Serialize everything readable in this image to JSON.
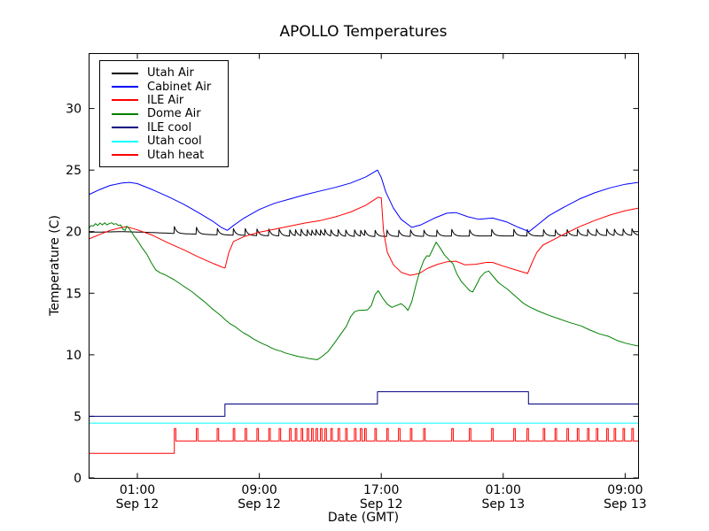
{
  "figure": {
    "title": "APOLLO Temperatures",
    "xlabel": "Date (GMT)",
    "ylabel": "Temperature (C)"
  },
  "chart_data": {
    "type": "line",
    "title": "APOLLO Temperatures",
    "xlabel": "Date (GMT)",
    "ylabel": "Temperature (C)",
    "x_unit": "hours relative to Sep 12 00:00 GMT",
    "xlim": [
      -2.2,
      33.85
    ],
    "ylim": [
      0,
      34.5
    ],
    "grid": false,
    "legend_position": "upper left",
    "xticks": [
      {
        "pos": 1,
        "time": "01:00",
        "date": "Sep 12"
      },
      {
        "pos": 9,
        "time": "09:00",
        "date": "Sep 12"
      },
      {
        "pos": 17,
        "time": "17:00",
        "date": "Sep 12"
      },
      {
        "pos": 25,
        "time": "01:00",
        "date": "Sep 13"
      },
      {
        "pos": 33,
        "time": "09:00",
        "date": "Sep 13"
      }
    ],
    "yticks": [
      0,
      5,
      10,
      15,
      20,
      25,
      30
    ],
    "series": [
      {
        "name": "Utah Air",
        "color": "#000000",
        "type": "sawtooth",
        "amp": 0.58,
        "tau": 0.15,
        "baseline": [
          [
            -2.2,
            19.95
          ],
          [
            0.0,
            20.0
          ],
          [
            1.5,
            19.95
          ],
          [
            3.5,
            19.85
          ],
          [
            6,
            19.75
          ],
          [
            9,
            19.67
          ],
          [
            12,
            19.62
          ],
          [
            16,
            19.6
          ],
          [
            20,
            19.62
          ],
          [
            24,
            19.65
          ],
          [
            28,
            19.65
          ],
          [
            33.85,
            19.7
          ]
        ],
        "times": [
          3.42,
          4.87,
          6.23,
          7.29,
          8.07,
          8.84,
          9.62,
          10.3,
          10.98,
          11.36,
          11.75,
          12.14,
          12.43,
          12.72,
          13.01,
          13.3,
          13.69,
          14.17,
          14.66,
          15.24,
          15.63,
          15.91,
          16.58,
          17.36,
          18.13,
          18.91,
          19.78,
          20.63,
          21.62,
          22.78,
          24.24,
          25.69,
          26.56,
          27.63,
          28.4,
          29.18,
          29.86,
          30.53,
          31.11,
          31.79,
          32.28,
          32.86,
          33.44
        ]
      },
      {
        "name": "Cabinet Air",
        "color": "#0000ff",
        "type": "line",
        "points": [
          [
            -2.2,
            23.0
          ],
          [
            -1.5,
            23.4
          ],
          [
            -0.8,
            23.75
          ],
          [
            0.0,
            23.95
          ],
          [
            0.5,
            24.0
          ],
          [
            1.0,
            23.9
          ],
          [
            2.0,
            23.4
          ],
          [
            3.0,
            22.85
          ],
          [
            4.0,
            22.25
          ],
          [
            5.0,
            21.55
          ],
          [
            6.0,
            20.8
          ],
          [
            6.5,
            20.35
          ],
          [
            6.9,
            20.1
          ],
          [
            7.3,
            20.5
          ],
          [
            8.0,
            21.1
          ],
          [
            9.0,
            21.8
          ],
          [
            10.0,
            22.3
          ],
          [
            11.0,
            22.65
          ],
          [
            12.0,
            23.0
          ],
          [
            13.0,
            23.3
          ],
          [
            14.0,
            23.6
          ],
          [
            15.0,
            23.95
          ],
          [
            16.0,
            24.45
          ],
          [
            16.75,
            25.0
          ],
          [
            17.0,
            24.4
          ],
          [
            17.3,
            23.2
          ],
          [
            17.8,
            21.9
          ],
          [
            18.3,
            21.0
          ],
          [
            19.0,
            20.35
          ],
          [
            19.6,
            20.55
          ],
          [
            20.5,
            21.1
          ],
          [
            21.3,
            21.5
          ],
          [
            21.9,
            21.55
          ],
          [
            22.7,
            21.2
          ],
          [
            23.4,
            21.0
          ],
          [
            24.3,
            21.1
          ],
          [
            25.2,
            20.8
          ],
          [
            26.0,
            20.35
          ],
          [
            26.7,
            20.0
          ],
          [
            27.3,
            20.6
          ],
          [
            28.0,
            21.3
          ],
          [
            29.0,
            22.0
          ],
          [
            30.0,
            22.65
          ],
          [
            31.0,
            23.15
          ],
          [
            32.0,
            23.55
          ],
          [
            33.0,
            23.85
          ],
          [
            33.85,
            24.0
          ]
        ]
      },
      {
        "name": "ILE Air",
        "color": "#ff0000",
        "type": "line",
        "points": [
          [
            -2.2,
            19.4
          ],
          [
            -1.5,
            19.75
          ],
          [
            -0.8,
            20.1
          ],
          [
            0.0,
            20.35
          ],
          [
            0.3,
            20.4
          ],
          [
            1.0,
            20.15
          ],
          [
            2.0,
            19.7
          ],
          [
            3.0,
            19.1
          ],
          [
            4.0,
            18.55
          ],
          [
            5.0,
            17.95
          ],
          [
            6.0,
            17.4
          ],
          [
            6.6,
            17.1
          ],
          [
            6.75,
            17.05
          ],
          [
            7.0,
            18.3
          ],
          [
            7.3,
            19.2
          ],
          [
            8.0,
            19.6
          ],
          [
            9.0,
            19.95
          ],
          [
            10.0,
            20.2
          ],
          [
            11.0,
            20.45
          ],
          [
            12.0,
            20.7
          ],
          [
            13.0,
            20.9
          ],
          [
            14.0,
            21.2
          ],
          [
            15.0,
            21.6
          ],
          [
            16.0,
            22.15
          ],
          [
            16.8,
            22.8
          ],
          [
            17.0,
            22.75
          ],
          [
            17.15,
            20.0
          ],
          [
            17.4,
            18.3
          ],
          [
            17.8,
            17.3
          ],
          [
            18.3,
            16.7
          ],
          [
            18.9,
            16.45
          ],
          [
            19.5,
            16.6
          ],
          [
            20.0,
            17.0
          ],
          [
            20.7,
            17.35
          ],
          [
            21.3,
            17.55
          ],
          [
            21.9,
            17.6
          ],
          [
            22.5,
            17.3
          ],
          [
            23.2,
            17.35
          ],
          [
            23.9,
            17.5
          ],
          [
            24.3,
            17.5
          ],
          [
            25.0,
            17.2
          ],
          [
            25.8,
            16.9
          ],
          [
            26.6,
            16.6
          ],
          [
            26.9,
            17.5
          ],
          [
            27.2,
            18.3
          ],
          [
            27.6,
            18.9
          ],
          [
            28.3,
            19.35
          ],
          [
            29.0,
            19.8
          ],
          [
            30.0,
            20.4
          ],
          [
            31.0,
            20.9
          ],
          [
            32.0,
            21.35
          ],
          [
            33.0,
            21.7
          ],
          [
            33.85,
            21.9
          ]
        ]
      },
      {
        "name": "Dome Air",
        "color": "#008000",
        "type": "line",
        "points": [
          [
            -2.2,
            20.25
          ],
          [
            -2.05,
            20.5
          ],
          [
            -1.9,
            20.45
          ],
          [
            -1.75,
            20.65
          ],
          [
            -1.6,
            20.5
          ],
          [
            -1.45,
            20.7
          ],
          [
            -1.3,
            20.55
          ],
          [
            -1.15,
            20.72
          ],
          [
            -1.0,
            20.55
          ],
          [
            -0.85,
            20.65
          ],
          [
            -0.7,
            20.72
          ],
          [
            -0.55,
            20.6
          ],
          [
            -0.4,
            20.65
          ],
          [
            -0.25,
            20.5
          ],
          [
            -0.1,
            20.55
          ],
          [
            0.05,
            20.2
          ],
          [
            0.2,
            20.1
          ],
          [
            0.3,
            20.45
          ],
          [
            0.45,
            20.25
          ],
          [
            0.6,
            20.0
          ],
          [
            0.8,
            19.6
          ],
          [
            1.0,
            19.3
          ],
          [
            1.3,
            18.7
          ],
          [
            1.6,
            18.2
          ],
          [
            1.9,
            17.5
          ],
          [
            2.2,
            16.9
          ],
          [
            2.5,
            16.65
          ],
          [
            2.8,
            16.5
          ],
          [
            3.1,
            16.3
          ],
          [
            3.4,
            16.1
          ],
          [
            3.7,
            15.85
          ],
          [
            4.0,
            15.6
          ],
          [
            4.3,
            15.35
          ],
          [
            4.6,
            15.1
          ],
          [
            4.9,
            14.8
          ],
          [
            5.2,
            14.5
          ],
          [
            5.5,
            14.2
          ],
          [
            5.9,
            13.75
          ],
          [
            6.2,
            13.45
          ],
          [
            6.5,
            13.15
          ],
          [
            6.8,
            12.8
          ],
          [
            7.1,
            12.5
          ],
          [
            7.4,
            12.3
          ],
          [
            7.7,
            12.0
          ],
          [
            8.0,
            11.75
          ],
          [
            8.3,
            11.55
          ],
          [
            8.6,
            11.3
          ],
          [
            8.9,
            11.1
          ],
          [
            9.2,
            10.9
          ],
          [
            9.5,
            10.75
          ],
          [
            9.8,
            10.55
          ],
          [
            10.1,
            10.4
          ],
          [
            10.4,
            10.3
          ],
          [
            10.7,
            10.15
          ],
          [
            11.0,
            10.05
          ],
          [
            11.3,
            9.95
          ],
          [
            11.6,
            9.85
          ],
          [
            11.9,
            9.8
          ],
          [
            12.2,
            9.7
          ],
          [
            12.5,
            9.65
          ],
          [
            12.8,
            9.6
          ],
          [
            13.1,
            9.85
          ],
          [
            13.5,
            10.25
          ],
          [
            13.9,
            10.9
          ],
          [
            14.3,
            11.6
          ],
          [
            14.7,
            12.3
          ],
          [
            15.0,
            13.1
          ],
          [
            15.25,
            13.5
          ],
          [
            15.5,
            13.6
          ],
          [
            15.8,
            13.62
          ],
          [
            16.1,
            13.65
          ],
          [
            16.35,
            14.0
          ],
          [
            16.6,
            14.9
          ],
          [
            16.8,
            15.2
          ],
          [
            17.1,
            14.6
          ],
          [
            17.4,
            14.1
          ],
          [
            17.7,
            13.85
          ],
          [
            18.0,
            14.0
          ],
          [
            18.3,
            14.15
          ],
          [
            18.55,
            13.9
          ],
          [
            18.75,
            13.6
          ],
          [
            19.0,
            14.3
          ],
          [
            19.3,
            15.8
          ],
          [
            19.55,
            16.9
          ],
          [
            19.8,
            17.7
          ],
          [
            20.0,
            18.05
          ],
          [
            20.15,
            18.0
          ],
          [
            20.35,
            18.5
          ],
          [
            20.6,
            19.15
          ],
          [
            20.85,
            18.7
          ],
          [
            21.15,
            18.1
          ],
          [
            21.45,
            17.7
          ],
          [
            21.7,
            17.4
          ],
          [
            21.95,
            16.6
          ],
          [
            22.25,
            15.95
          ],
          [
            22.55,
            15.55
          ],
          [
            22.8,
            15.2
          ],
          [
            23.0,
            15.1
          ],
          [
            23.25,
            15.7
          ],
          [
            23.5,
            16.3
          ],
          [
            23.8,
            16.7
          ],
          [
            24.05,
            16.8
          ],
          [
            24.35,
            16.35
          ],
          [
            24.7,
            15.85
          ],
          [
            25.3,
            15.3
          ],
          [
            25.85,
            14.7
          ],
          [
            26.3,
            14.2
          ],
          [
            26.7,
            13.9
          ],
          [
            27.3,
            13.55
          ],
          [
            28.0,
            13.2
          ],
          [
            28.7,
            12.9
          ],
          [
            29.4,
            12.6
          ],
          [
            30.1,
            12.35
          ],
          [
            30.7,
            12.0
          ],
          [
            31.3,
            11.7
          ],
          [
            31.9,
            11.5
          ],
          [
            32.5,
            11.15
          ],
          [
            33.0,
            10.95
          ],
          [
            33.5,
            10.8
          ],
          [
            33.85,
            10.72
          ]
        ]
      },
      {
        "name": "ILE cool",
        "color": "#000080",
        "type": "line",
        "points": [
          [
            -2.2,
            5.0
          ],
          [
            6.74,
            5.0
          ],
          [
            6.74,
            6.0
          ],
          [
            16.75,
            6.0
          ],
          [
            16.75,
            7.0
          ],
          [
            26.66,
            7.0
          ],
          [
            26.66,
            6.0
          ],
          [
            33.85,
            6.0
          ]
        ]
      },
      {
        "name": "Utah cool",
        "color": "#00ffff",
        "type": "line",
        "points": [
          [
            -2.2,
            4.45
          ],
          [
            33.85,
            4.45
          ]
        ]
      },
      {
        "name": "Utah heat",
        "color": "#ff0000",
        "type": "pulse",
        "pre_level": 2.0,
        "base": 3.0,
        "top": 4.0,
        "pulse_width": 0.1,
        "times": [
          3.42,
          4.87,
          6.23,
          7.29,
          8.07,
          8.84,
          9.62,
          10.3,
          10.98,
          11.36,
          11.75,
          12.14,
          12.43,
          12.72,
          13.01,
          13.3,
          13.69,
          14.17,
          14.66,
          15.24,
          15.63,
          15.91,
          16.58,
          17.36,
          18.13,
          18.91,
          19.78,
          21.62,
          22.78,
          24.24,
          25.69,
          26.56,
          27.63,
          28.4,
          29.18,
          29.86,
          30.53,
          31.11,
          31.79,
          32.28,
          32.86,
          33.44
        ]
      }
    ]
  }
}
